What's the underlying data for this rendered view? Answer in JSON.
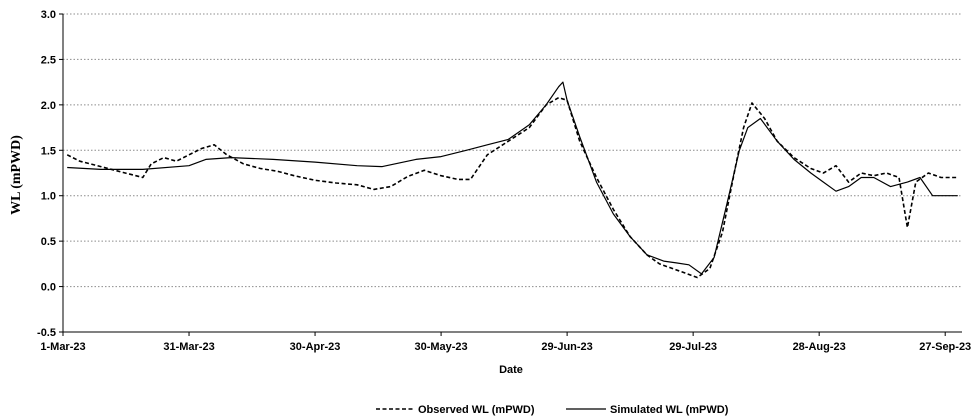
{
  "chart_data": {
    "type": "line",
    "title": "",
    "xlabel": "Date",
    "ylabel": "WL (mPWD)",
    "ylim": [
      -0.5,
      3.0
    ],
    "yticks": [
      -0.5,
      0.0,
      0.5,
      1.0,
      1.5,
      2.0,
      2.5,
      3.0
    ],
    "ytick_labels": [
      "-0.5",
      "0.0",
      "0.5",
      "1.0",
      "1.5",
      "2.0",
      "2.5",
      "3.0"
    ],
    "xlim": [
      "2023-03-01",
      "2023-10-01"
    ],
    "xticks": [
      "2023-03-01",
      "2023-03-31",
      "2023-04-30",
      "2023-05-30",
      "2023-06-29",
      "2023-07-29",
      "2023-08-28",
      "2023-09-27"
    ],
    "xtick_labels": [
      "1-Mar-23",
      "31-Mar-23",
      "30-Apr-23",
      "30-May-23",
      "29-Jun-23",
      "29-Jul-23",
      "28-Aug-23",
      "27-Sep-23"
    ],
    "grid": "horizontal dotted",
    "legend_position": "bottom",
    "series": [
      {
        "name": "Observed WL (mPWD)",
        "style": "dashed",
        "color": "#000000",
        "x": [
          "2023-03-02",
          "2023-03-05",
          "2023-03-10",
          "2023-03-15",
          "2023-03-20",
          "2023-03-22",
          "2023-03-25",
          "2023-03-28",
          "2023-03-31",
          "2023-04-03",
          "2023-04-06",
          "2023-04-09",
          "2023-04-13",
          "2023-04-17",
          "2023-04-21",
          "2023-04-25",
          "2023-04-30",
          "2023-05-05",
          "2023-05-10",
          "2023-05-14",
          "2023-05-18",
          "2023-05-22",
          "2023-05-26",
          "2023-05-30",
          "2023-06-03",
          "2023-06-06",
          "2023-06-10",
          "2023-06-15",
          "2023-06-20",
          "2023-06-24",
          "2023-06-27",
          "2023-06-29",
          "2023-07-02",
          "2023-07-06",
          "2023-07-10",
          "2023-07-14",
          "2023-07-18",
          "2023-07-21",
          "2023-07-24",
          "2023-07-27",
          "2023-07-30",
          "2023-08-02",
          "2023-08-05",
          "2023-08-08",
          "2023-08-10",
          "2023-08-12",
          "2023-08-15",
          "2023-08-18",
          "2023-08-22",
          "2023-08-26",
          "2023-08-29",
          "2023-09-01",
          "2023-09-04",
          "2023-09-07",
          "2023-09-10",
          "2023-09-13",
          "2023-09-16",
          "2023-09-18",
          "2023-09-20",
          "2023-09-23",
          "2023-09-26",
          "2023-09-30"
        ],
        "y": [
          1.45,
          1.38,
          1.32,
          1.26,
          1.2,
          1.35,
          1.42,
          1.38,
          1.45,
          1.52,
          1.56,
          1.45,
          1.35,
          1.3,
          1.27,
          1.22,
          1.17,
          1.14,
          1.12,
          1.07,
          1.1,
          1.21,
          1.28,
          1.22,
          1.18,
          1.18,
          1.45,
          1.6,
          1.75,
          2.0,
          2.08,
          2.05,
          1.6,
          1.2,
          0.85,
          0.55,
          0.35,
          0.25,
          0.2,
          0.15,
          0.1,
          0.2,
          0.6,
          1.3,
          1.75,
          2.02,
          1.85,
          1.6,
          1.42,
          1.3,
          1.25,
          1.33,
          1.15,
          1.25,
          1.22,
          1.25,
          1.2,
          0.65,
          1.15,
          1.25,
          1.2,
          1.2
        ]
      },
      {
        "name": "Simulated WL (mPWD)",
        "style": "solid",
        "color": "#000000",
        "x": [
          "2023-03-02",
          "2023-03-10",
          "2023-03-20",
          "2023-03-31",
          "2023-04-04",
          "2023-04-10",
          "2023-04-20",
          "2023-04-30",
          "2023-05-10",
          "2023-05-16",
          "2023-05-24",
          "2023-05-30",
          "2023-06-05",
          "2023-06-10",
          "2023-06-15",
          "2023-06-20",
          "2023-06-24",
          "2023-06-27",
          "2023-06-28",
          "2023-06-29",
          "2023-07-02",
          "2023-07-06",
          "2023-07-10",
          "2023-07-14",
          "2023-07-18",
          "2023-07-22",
          "2023-07-25",
          "2023-07-28",
          "2023-07-31",
          "2023-08-03",
          "2023-08-06",
          "2023-08-09",
          "2023-08-11",
          "2023-08-14",
          "2023-08-18",
          "2023-08-22",
          "2023-08-26",
          "2023-08-29",
          "2023-09-01",
          "2023-09-04",
          "2023-09-07",
          "2023-09-10",
          "2023-09-14",
          "2023-09-18",
          "2023-09-21",
          "2023-09-24",
          "2023-09-27",
          "2023-09-30"
        ],
        "y": [
          1.31,
          1.29,
          1.29,
          1.33,
          1.4,
          1.42,
          1.4,
          1.37,
          1.33,
          1.32,
          1.4,
          1.43,
          1.5,
          1.56,
          1.62,
          1.78,
          2.0,
          2.2,
          2.25,
          2.05,
          1.65,
          1.15,
          0.8,
          0.55,
          0.35,
          0.28,
          0.26,
          0.24,
          0.14,
          0.32,
          0.9,
          1.5,
          1.75,
          1.85,
          1.6,
          1.4,
          1.25,
          1.15,
          1.05,
          1.1,
          1.2,
          1.2,
          1.1,
          1.15,
          1.2,
          1.0,
          1.0,
          1.0
        ]
      }
    ]
  }
}
